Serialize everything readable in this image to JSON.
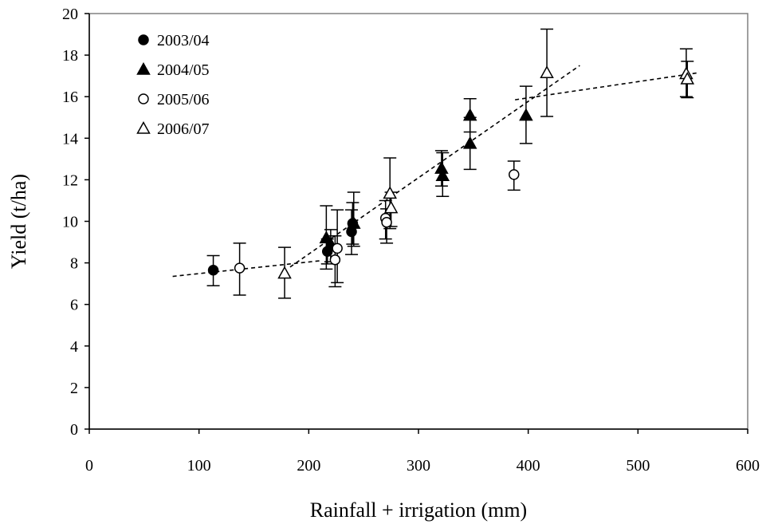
{
  "chart_data": {
    "type": "scatter",
    "title": "",
    "xlabel": "Rainfall + irrigation (mm)",
    "ylabel": "Yield (t/ha)",
    "xlim": [
      0,
      600
    ],
    "ylim": [
      0,
      20
    ],
    "x_ticks": [
      0,
      100,
      200,
      300,
      400,
      500,
      600
    ],
    "y_ticks": [
      0,
      2,
      4,
      6,
      8,
      10,
      12,
      14,
      16,
      18,
      20
    ],
    "grid": false,
    "legend_position": "top-left",
    "series": [
      {
        "name": "2003/04",
        "marker": "filled-circle",
        "points": [
          {
            "x": 113,
            "y": 7.65,
            "err_low": 6.9,
            "err_high": 8.35
          },
          {
            "x": 217,
            "y": 8.55,
            "err_low": 7.95,
            "err_high": 9.15
          },
          {
            "x": 239,
            "y": 9.5,
            "err_low": 8.4,
            "err_high": 10.55
          },
          {
            "x": 240,
            "y": 9.9,
            "err_low": 8.9,
            "err_high": 10.9
          }
        ]
      },
      {
        "name": "2004/05",
        "marker": "filled-triangle",
        "points": [
          {
            "x": 216,
            "y": 9.2,
            "err_low": 7.7,
            "err_high": 10.75
          },
          {
            "x": 220,
            "y": 8.9,
            "err_low": 8.05,
            "err_high": 9.6
          },
          {
            "x": 241,
            "y": 9.9,
            "err_low": 8.8,
            "err_high": 11.4
          },
          {
            "x": 321,
            "y": 12.55,
            "err_low": 11.7,
            "err_high": 13.4
          },
          {
            "x": 322,
            "y": 12.2,
            "err_low": 11.2,
            "err_high": 13.3
          },
          {
            "x": 347,
            "y": 15.1,
            "err_low": 14.3,
            "err_high": 15.9
          },
          {
            "x": 347,
            "y": 13.75,
            "err_low": 12.5,
            "err_high": 15.0
          },
          {
            "x": 398,
            "y": 15.1,
            "err_low": 13.75,
            "err_high": 16.5
          }
        ]
      },
      {
        "name": "2005/06",
        "marker": "open-circle",
        "points": [
          {
            "x": 137,
            "y": 7.75,
            "err_low": 6.45,
            "err_high": 8.95
          },
          {
            "x": 224,
            "y": 8.15,
            "err_low": 6.85,
            "err_high": 9.3
          },
          {
            "x": 226,
            "y": 8.7,
            "err_low": 7.05,
            "err_high": 10.55
          },
          {
            "x": 270,
            "y": 10.15,
            "err_low": 9.15,
            "err_high": 11.0
          },
          {
            "x": 271,
            "y": 9.95,
            "err_low": 8.95,
            "err_high": 10.6
          },
          {
            "x": 387,
            "y": 12.25,
            "err_low": 11.5,
            "err_high": 12.9
          }
        ]
      },
      {
        "name": "2006/07",
        "marker": "open-triangle",
        "points": [
          {
            "x": 178,
            "y": 7.5,
            "err_low": 6.3,
            "err_high": 8.75
          },
          {
            "x": 274,
            "y": 11.35,
            "err_low": 9.65,
            "err_high": 13.05
          },
          {
            "x": 275,
            "y": 10.65,
            "err_low": 9.75,
            "err_high": 11.4
          },
          {
            "x": 417,
            "y": 17.15,
            "err_low": 15.05,
            "err_high": 19.25
          },
          {
            "x": 544,
            "y": 17.1,
            "err_low": 16.0,
            "err_high": 18.3
          },
          {
            "x": 545,
            "y": 16.85,
            "err_low": 15.95,
            "err_high": 17.7
          }
        ]
      }
    ],
    "trend_lines": [
      {
        "style": "dashed",
        "points": [
          [
            76,
            7.35
          ],
          [
            210,
            8.1
          ]
        ]
      },
      {
        "style": "dashed",
        "points": [
          [
            183,
            7.8
          ],
          [
            447,
            17.5
          ]
        ]
      },
      {
        "style": "dashed",
        "points": [
          [
            388,
            15.85
          ],
          [
            555,
            17.15
          ]
        ]
      }
    ]
  }
}
